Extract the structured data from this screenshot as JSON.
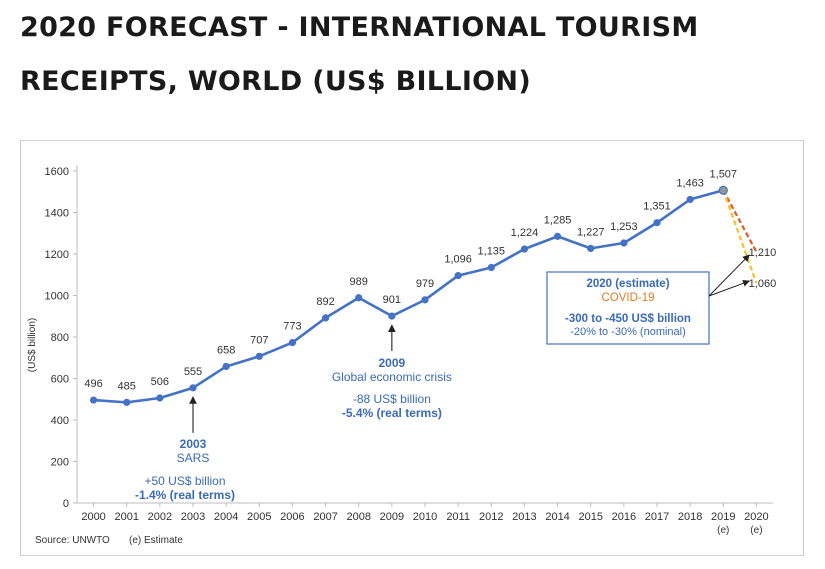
{
  "page": {
    "title_line_1": "2020 FORECAST - INTERNATIONAL TOURISM",
    "title_line_2": "RECEIPTS, WORLD (US$ BILLION)"
  },
  "chart_data": {
    "type": "line",
    "title": "2020 FORECAST - INTERNATIONAL TOURISM RECEIPTS, WORLD (US$ BILLION)",
    "ylabel": "(US$ billion)",
    "xlabel": "",
    "ylim": [
      0,
      1600
    ],
    "yticks": [
      0,
      200,
      400,
      600,
      800,
      1000,
      1200,
      1400,
      1600
    ],
    "categories": [
      "2000",
      "2001",
      "2002",
      "2003",
      "2004",
      "2005",
      "2006",
      "2007",
      "2008",
      "2009",
      "2010",
      "2011",
      "2012",
      "2013",
      "2014",
      "2015",
      "2016",
      "2017",
      "2018",
      "2019",
      "2020"
    ],
    "category_sublabels": {
      "2019": "(e)",
      "2020": "(e)"
    },
    "series": [
      {
        "name": "International tourism receipts",
        "color": "#4472c4",
        "x": [
          "2000",
          "2001",
          "2002",
          "2003",
          "2004",
          "2005",
          "2006",
          "2007",
          "2008",
          "2009",
          "2010",
          "2011",
          "2012",
          "2013",
          "2014",
          "2015",
          "2016",
          "2017",
          "2018",
          "2019"
        ],
        "values": [
          496,
          485,
          506,
          555,
          658,
          707,
          773,
          892,
          989,
          901,
          979,
          1096,
          1135,
          1224,
          1285,
          1227,
          1253,
          1351,
          1463,
          1507
        ],
        "labels": [
          "496",
          "485",
          "506",
          "555",
          "658",
          "707",
          "773",
          "892",
          "989",
          "901",
          "979",
          "1,096",
          "1,135",
          "1,224",
          "1,285",
          "1,227",
          "1,253",
          "1,351",
          "1,463",
          "1,507"
        ]
      }
    ],
    "projections": [
      {
        "name": "high estimate",
        "from": "2019",
        "to": "2020",
        "from_value": 1507,
        "value": 1210,
        "label": "1,210",
        "color": "#e05a1e"
      },
      {
        "name": "low estimate",
        "from": "2019",
        "to": "2020",
        "from_value": 1507,
        "value": 1060,
        "label": "1,060",
        "color": "#f2c12e"
      }
    ],
    "annotations": {
      "sars": {
        "year": "2003",
        "title": "2003",
        "subtitle": "SARS",
        "line1": "+50 US$ billion",
        "line2": "-1.4% (real terms)"
      },
      "crisis": {
        "year": "2009",
        "title": "2009",
        "subtitle": "Global economic crisis",
        "line1": "-88 US$ billion",
        "line2": "-5.4% (real terms)"
      },
      "covid": {
        "title": "2020 (estimate)",
        "subtitle": "COVID-19",
        "line1": "-300 to -450 US$ billion",
        "line2": "-20% to -30% (nominal)"
      }
    },
    "source": "Source: UNWTO",
    "footnote": "(e) Estimate",
    "colors": {
      "line": "#4472c4",
      "accent": "#3a6ab8",
      "axis": "#555555",
      "box_border": "#4472c4",
      "covid": "#e07b22"
    }
  }
}
